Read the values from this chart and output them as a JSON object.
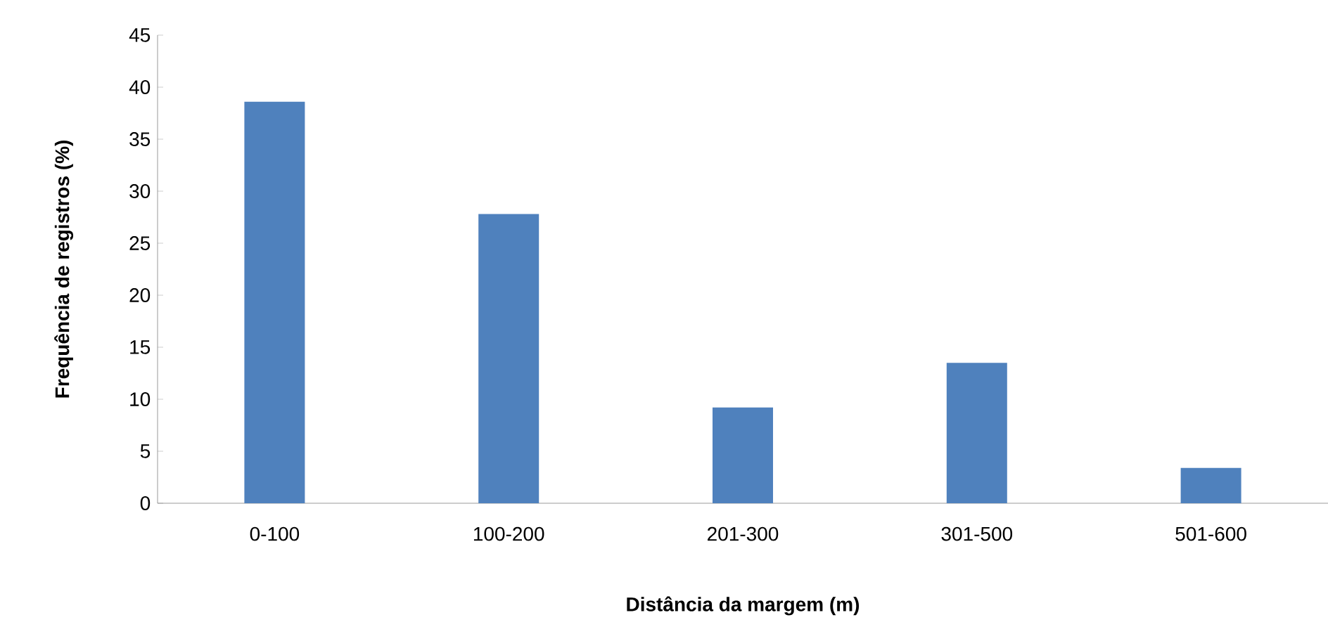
{
  "chart_data": {
    "type": "bar",
    "xlabel": "Distância da margem (m)",
    "ylabel": "Frequência de registros (%)",
    "categories": [
      "0-100",
      "100-200",
      "201-300",
      "301-500",
      "501-600"
    ],
    "values": [
      38.6,
      27.8,
      9.2,
      13.5,
      3.4
    ],
    "color": "#4f81bd",
    "ylim": [
      0,
      45
    ],
    "yticks": [
      0,
      5,
      10,
      15,
      20,
      25,
      30,
      35,
      40,
      45
    ],
    "grid": false
  }
}
